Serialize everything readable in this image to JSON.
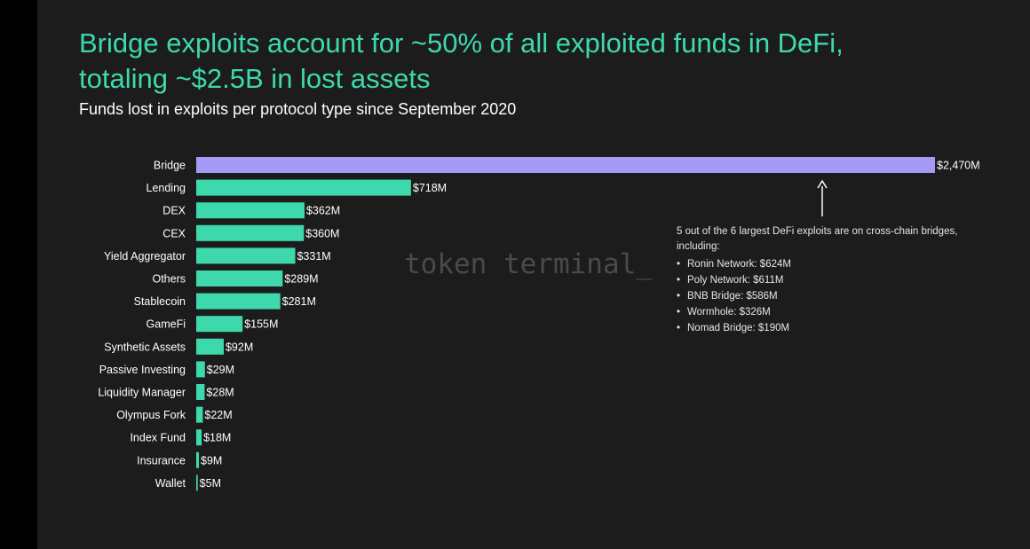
{
  "title_line1": "Bridge exploits account for ~50% of all exploited funds in DeFi,",
  "title_line2": "totaling ~$2.5B in lost assets",
  "subtitle": "Funds lost in exploits per protocol type since September 2020",
  "watermark": "token terminal_",
  "colors": {
    "background": "#1c1c1c",
    "highlight_bar": "#a59bf6",
    "bar": "#3dd9ad",
    "title": "#3dd9ad",
    "text": "#ffffff"
  },
  "annotation": {
    "intro": "5 out of the 6 largest DeFi exploits are on cross-chain bridges, including:",
    "items": [
      "Ronin Network: $624M",
      "Poly Network: $611M",
      "BNB Bridge: $586M",
      "Wormhole: $326M",
      "Nomad Bridge: $190M"
    ]
  },
  "chart_data": {
    "type": "bar",
    "orientation": "horizontal",
    "title": "Bridge exploits account for ~50% of all exploited funds in DeFi, totaling ~$2.5B in lost assets",
    "subtitle": "Funds lost in exploits per protocol type since September 2020",
    "xlabel": "",
    "ylabel": "",
    "unit": "$M",
    "categories": [
      "Bridge",
      "Lending",
      "DEX",
      "CEX",
      "Yield Aggregator",
      "Others",
      "Stablecoin",
      "GameFi",
      "Synthetic Assets",
      "Passive Investing",
      "Liquidity Manager",
      "Olympus Fork",
      "Index Fund",
      "Insurance",
      "Wallet"
    ],
    "values": [
      2470,
      718,
      362,
      360,
      331,
      289,
      281,
      155,
      92,
      29,
      28,
      22,
      18,
      9,
      5
    ],
    "value_labels": [
      "$2,470M",
      "$718M",
      "$362M",
      "$360M",
      "$331M",
      "$289M",
      "$281M",
      "$155M",
      "$92M",
      "$29M",
      "$28M",
      "$22M",
      "$18M",
      "$9M",
      "$5M"
    ],
    "highlight_index": 0,
    "grid": false,
    "legend": "none",
    "xlim": [
      0,
      2470
    ]
  }
}
